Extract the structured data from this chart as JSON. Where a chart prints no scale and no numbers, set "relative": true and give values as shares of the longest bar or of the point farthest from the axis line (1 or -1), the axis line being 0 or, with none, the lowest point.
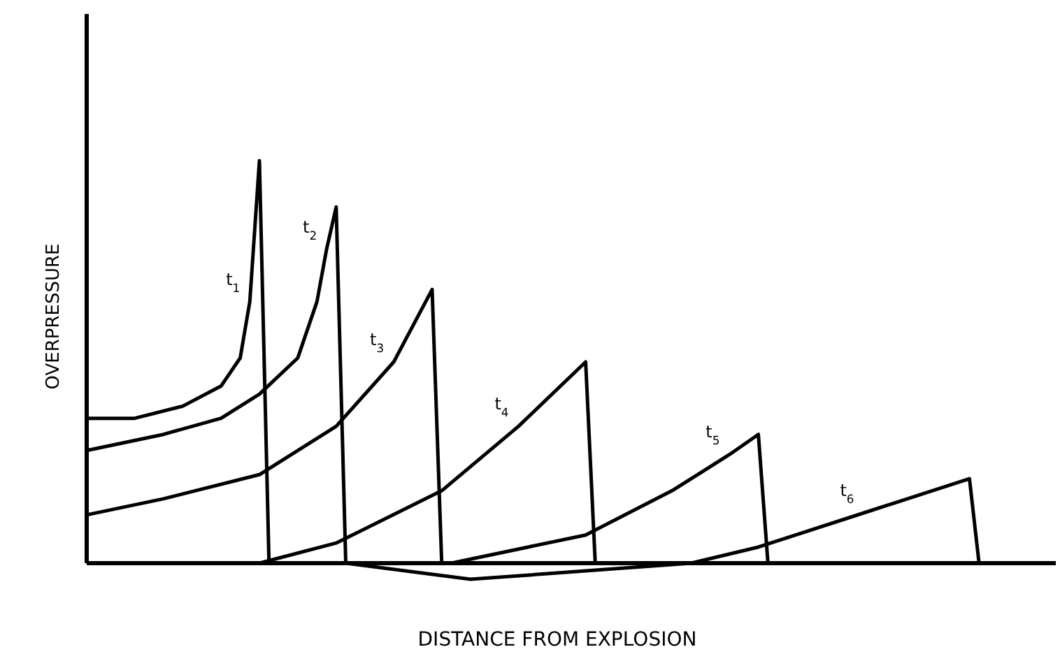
{
  "chart_data": {
    "type": "line",
    "relative": true,
    "xlabel": "DISTANCE FROM EXPLOSION",
    "ylabel": "OVERPRESSURE",
    "line_style": "solid",
    "categories": [
      null,
      null,
      null,
      null,
      null,
      null,
      null,
      null,
      null,
      null,
      null,
      null,
      null,
      null,
      null,
      null,
      null,
      null,
      null,
      null,
      null,
      null,
      null,
      null,
      null,
      null,
      null,
      null,
      null,
      null,
      null,
      null,
      null,
      null,
      null,
      null,
      null,
      null,
      null,
      null,
      null,
      null,
      null,
      null,
      null,
      null,
      null,
      null,
      null,
      null,
      null,
      null,
      null,
      null,
      null,
      null,
      null,
      null,
      null,
      null,
      null,
      null,
      null,
      null,
      null,
      null,
      null,
      null,
      null,
      null,
      null,
      null,
      null,
      null,
      null,
      null,
      null,
      null,
      null,
      null,
      null,
      null,
      null,
      null,
      null,
      null,
      null,
      null,
      null,
      null,
      null,
      null,
      null,
      null,
      null,
      null,
      null,
      null,
      null,
      null
    ],
    "series": [
      {
        "name": "t$_{1}$",
        "color": "#000000",
        "values": [
          0.36,
          null,
          null,
          null,
          null,
          0.36,
          null,
          null,
          null,
          null,
          0.39,
          null,
          null,
          null,
          0.44,
          null,
          0.51,
          0.65,
          1.0,
          0,
          null,
          null,
          null,
          null,
          null,
          null,
          null,
          null,
          null,
          null,
          null,
          null,
          null,
          null,
          null,
          null,
          null,
          null,
          null,
          null,
          null,
          null,
          null,
          null,
          null,
          null,
          null,
          null,
          null,
          null,
          null,
          null,
          null,
          null,
          null,
          null,
          null,
          null,
          null,
          null,
          null,
          null,
          null,
          null,
          null,
          null,
          null,
          null,
          null,
          null,
          null,
          null,
          null,
          null,
          null,
          null,
          null,
          null,
          null,
          null,
          null,
          null,
          null,
          null,
          null,
          null,
          null,
          null,
          null,
          null,
          null,
          null,
          null,
          null,
          null,
          null,
          null,
          null,
          null,
          null
        ]
      },
      {
        "name": "t$_{2}$",
        "color": "#000000",
        "values": [
          0.28,
          null,
          null,
          null,
          null,
          null,
          null,
          null,
          0.32,
          null,
          null,
          null,
          null,
          null,
          0.36,
          null,
          null,
          null,
          0.42,
          null,
          null,
          null,
          0.51,
          null,
          0.65,
          0.78,
          0.885,
          0,
          null,
          null,
          null,
          null,
          null,
          null,
          null,
          null,
          null,
          null,
          null,
          null,
          null,
          null,
          null,
          null,
          null,
          null,
          null,
          null,
          null,
          null,
          null,
          null,
          null,
          null,
          null,
          null,
          null,
          null,
          null,
          null,
          null,
          null,
          null,
          null,
          null,
          null,
          null,
          null,
          null,
          null,
          null,
          null,
          null,
          null,
          null,
          null,
          null,
          null,
          null,
          null,
          null,
          null,
          null,
          null,
          null,
          null,
          null,
          null,
          null,
          null,
          null,
          null,
          null,
          null,
          null,
          null,
          null,
          null,
          null,
          null
        ]
      },
      {
        "name": "t$_{3}$",
        "color": "#000000",
        "values": [
          0.12,
          null,
          null,
          null,
          null,
          null,
          null,
          null,
          0.16,
          null,
          null,
          null,
          null,
          null,
          null,
          null,
          null,
          null,
          0.22,
          null,
          null,
          null,
          null,
          null,
          null,
          null,
          0.34,
          null,
          null,
          null,
          null,
          null,
          0.5,
          null,
          null,
          null,
          0.68,
          0,
          null,
          null,
          null,
          null,
          null,
          null,
          null,
          null,
          null,
          null,
          null,
          null,
          null,
          null,
          null,
          null,
          null,
          null,
          null,
          null,
          null,
          null,
          null,
          null,
          null,
          null,
          null,
          null,
          null,
          null,
          null,
          null,
          null,
          null,
          null,
          null,
          null,
          null,
          null,
          null,
          null,
          null,
          null,
          null,
          null,
          null,
          null,
          null,
          null,
          null,
          null,
          null,
          null,
          null,
          null,
          null,
          null,
          null,
          null,
          null,
          null,
          null
        ]
      },
      {
        "name": "t$_{4}$",
        "color": "#000000",
        "values": [
          null,
          null,
          null,
          null,
          null,
          null,
          null,
          null,
          null,
          null,
          null,
          null,
          null,
          null,
          null,
          null,
          null,
          null,
          0,
          null,
          null,
          null,
          null,
          null,
          null,
          null,
          0.05,
          null,
          null,
          null,
          null,
          null,
          null,
          null,
          null,
          null,
          null,
          0.18,
          null,
          null,
          null,
          null,
          null,
          null,
          null,
          0.34,
          null,
          null,
          null,
          null,
          null,
          null,
          0.5,
          0,
          null,
          null,
          null,
          null,
          null,
          null,
          null,
          null,
          null,
          null,
          null,
          null,
          null,
          null,
          null,
          null,
          null,
          null,
          null,
          null,
          null,
          null,
          null,
          null,
          null,
          null,
          null,
          null,
          null,
          null,
          null,
          null,
          null,
          null,
          null,
          null,
          null,
          null,
          null,
          null,
          null,
          null,
          null,
          null,
          null,
          null
        ]
      },
      {
        "name": "t$_{5}$",
        "color": "#000000",
        "values": [
          null,
          null,
          null,
          null,
          null,
          null,
          null,
          null,
          null,
          null,
          null,
          null,
          null,
          null,
          null,
          null,
          null,
          null,
          null,
          null,
          null,
          null,
          null,
          null,
          null,
          null,
          null,
          null,
          null,
          null,
          null,
          null,
          null,
          null,
          null,
          null,
          null,
          null,
          0,
          null,
          null,
          null,
          null,
          null,
          null,
          null,
          null,
          null,
          null,
          null,
          null,
          null,
          0.07,
          null,
          null,
          null,
          null,
          null,
          null,
          null,
          null,
          0.18,
          null,
          null,
          null,
          null,
          null,
          0.27,
          null,
          null,
          0.32,
          0,
          null,
          null,
          null,
          null,
          null,
          null,
          null,
          null,
          null,
          null,
          null,
          null,
          null,
          null,
          null,
          null,
          null,
          null,
          null,
          null,
          null,
          null,
          null,
          null,
          null,
          null,
          null,
          null
        ]
      },
      {
        "name": "t$_{6}$",
        "color": "#000000",
        "values": [
          null,
          null,
          null,
          null,
          null,
          null,
          null,
          null,
          null,
          null,
          null,
          null,
          null,
          null,
          null,
          null,
          null,
          null,
          null,
          null,
          null,
          null,
          null,
          null,
          null,
          null,
          null,
          0,
          null,
          null,
          null,
          null,
          null,
          null,
          null,
          null,
          null,
          null,
          null,
          null,
          -0.04,
          null,
          null,
          null,
          null,
          null,
          null,
          null,
          null,
          null,
          null,
          null,
          null,
          null,
          null,
          null,
          null,
          null,
          null,
          null,
          null,
          null,
          null,
          0,
          null,
          null,
          null,
          null,
          null,
          null,
          0.04,
          null,
          null,
          null,
          null,
          null,
          null,
          null,
          null,
          null,
          null,
          0.125,
          null,
          null,
          null,
          null,
          null,
          null,
          null,
          null,
          null,
          null,
          0.21,
          0,
          null,
          null,
          null,
          null,
          null,
          null
        ]
      }
    ]
  }
}
